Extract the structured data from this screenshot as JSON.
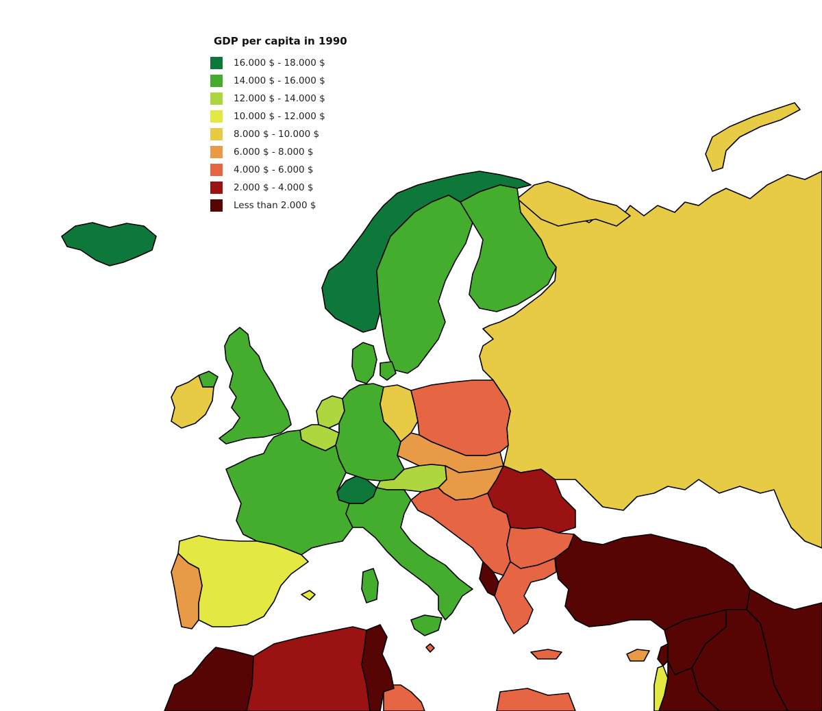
{
  "legend": {
    "title": "GDP per capita in 1990",
    "items": [
      {
        "label": "16.000 $ - 18.000 $",
        "color": "#0d783a"
      },
      {
        "label": "14.000 $ - 16.000 $",
        "color": "#45ad2e"
      },
      {
        "label": "12.000 $ - 14.000 $",
        "color": "#aed63e"
      },
      {
        "label": "10.000 $ - 12.000 $",
        "color": "#e3e843"
      },
      {
        "label": "8.000 $ - 10.000 $",
        "color": "#e8cb44"
      },
      {
        "label": "6.000 $ - 8.000 $",
        "color": "#e99a46"
      },
      {
        "label": "4.000 $ - 6.000 $",
        "color": "#e66644"
      },
      {
        "label": "2.000 $ - 4.000 $",
        "color": "#9a1212"
      },
      {
        "label": "Less than 2.000 $",
        "color": "#560404"
      }
    ]
  },
  "regions": [
    {
      "name": "Iceland",
      "bracket": 0
    },
    {
      "name": "Norway",
      "bracket": 0
    },
    {
      "name": "Switzerland",
      "bracket": 0
    },
    {
      "name": "Sweden",
      "bracket": 1
    },
    {
      "name": "Finland",
      "bracket": 1
    },
    {
      "name": "United Kingdom",
      "bracket": 1
    },
    {
      "name": "Denmark",
      "bracket": 1
    },
    {
      "name": "West Germany",
      "bracket": 1
    },
    {
      "name": "France",
      "bracket": 1
    },
    {
      "name": "Italy",
      "bracket": 1
    },
    {
      "name": "Netherlands",
      "bracket": 2
    },
    {
      "name": "Belgium",
      "bracket": 2
    },
    {
      "name": "Austria",
      "bracket": 2
    },
    {
      "name": "Spain",
      "bracket": 3
    },
    {
      "name": "Ireland",
      "bracket": 4
    },
    {
      "name": "East Germany",
      "bracket": 4
    },
    {
      "name": "Soviet Union",
      "bracket": 4
    },
    {
      "name": "Portugal",
      "bracket": 5
    },
    {
      "name": "Czechoslovakia",
      "bracket": 5
    },
    {
      "name": "Hungary",
      "bracket": 5
    },
    {
      "name": "Cyprus",
      "bracket": 5
    },
    {
      "name": "Poland",
      "bracket": 6
    },
    {
      "name": "Yugoslavia",
      "bracket": 6
    },
    {
      "name": "Bulgaria",
      "bracket": 6
    },
    {
      "name": "Greece",
      "bracket": 6
    },
    {
      "name": "Malta",
      "bracket": 6
    },
    {
      "name": "Libya",
      "bracket": 6
    },
    {
      "name": "Egypt",
      "bracket": 6
    },
    {
      "name": "Romania",
      "bracket": 7
    },
    {
      "name": "Algeria",
      "bracket": 7
    },
    {
      "name": "Albania",
      "bracket": 8
    },
    {
      "name": "Turkey",
      "bracket": 8
    },
    {
      "name": "Syria",
      "bracket": 8
    },
    {
      "name": "Iraq",
      "bracket": 8
    },
    {
      "name": "Iran",
      "bracket": 8
    },
    {
      "name": "Jordan",
      "bracket": 8
    },
    {
      "name": "Morocco",
      "bracket": 8
    },
    {
      "name": "Tunisia",
      "bracket": 8
    },
    {
      "name": "Lebanon",
      "bracket": 8
    },
    {
      "name": "Israel",
      "bracket": 3
    }
  ]
}
